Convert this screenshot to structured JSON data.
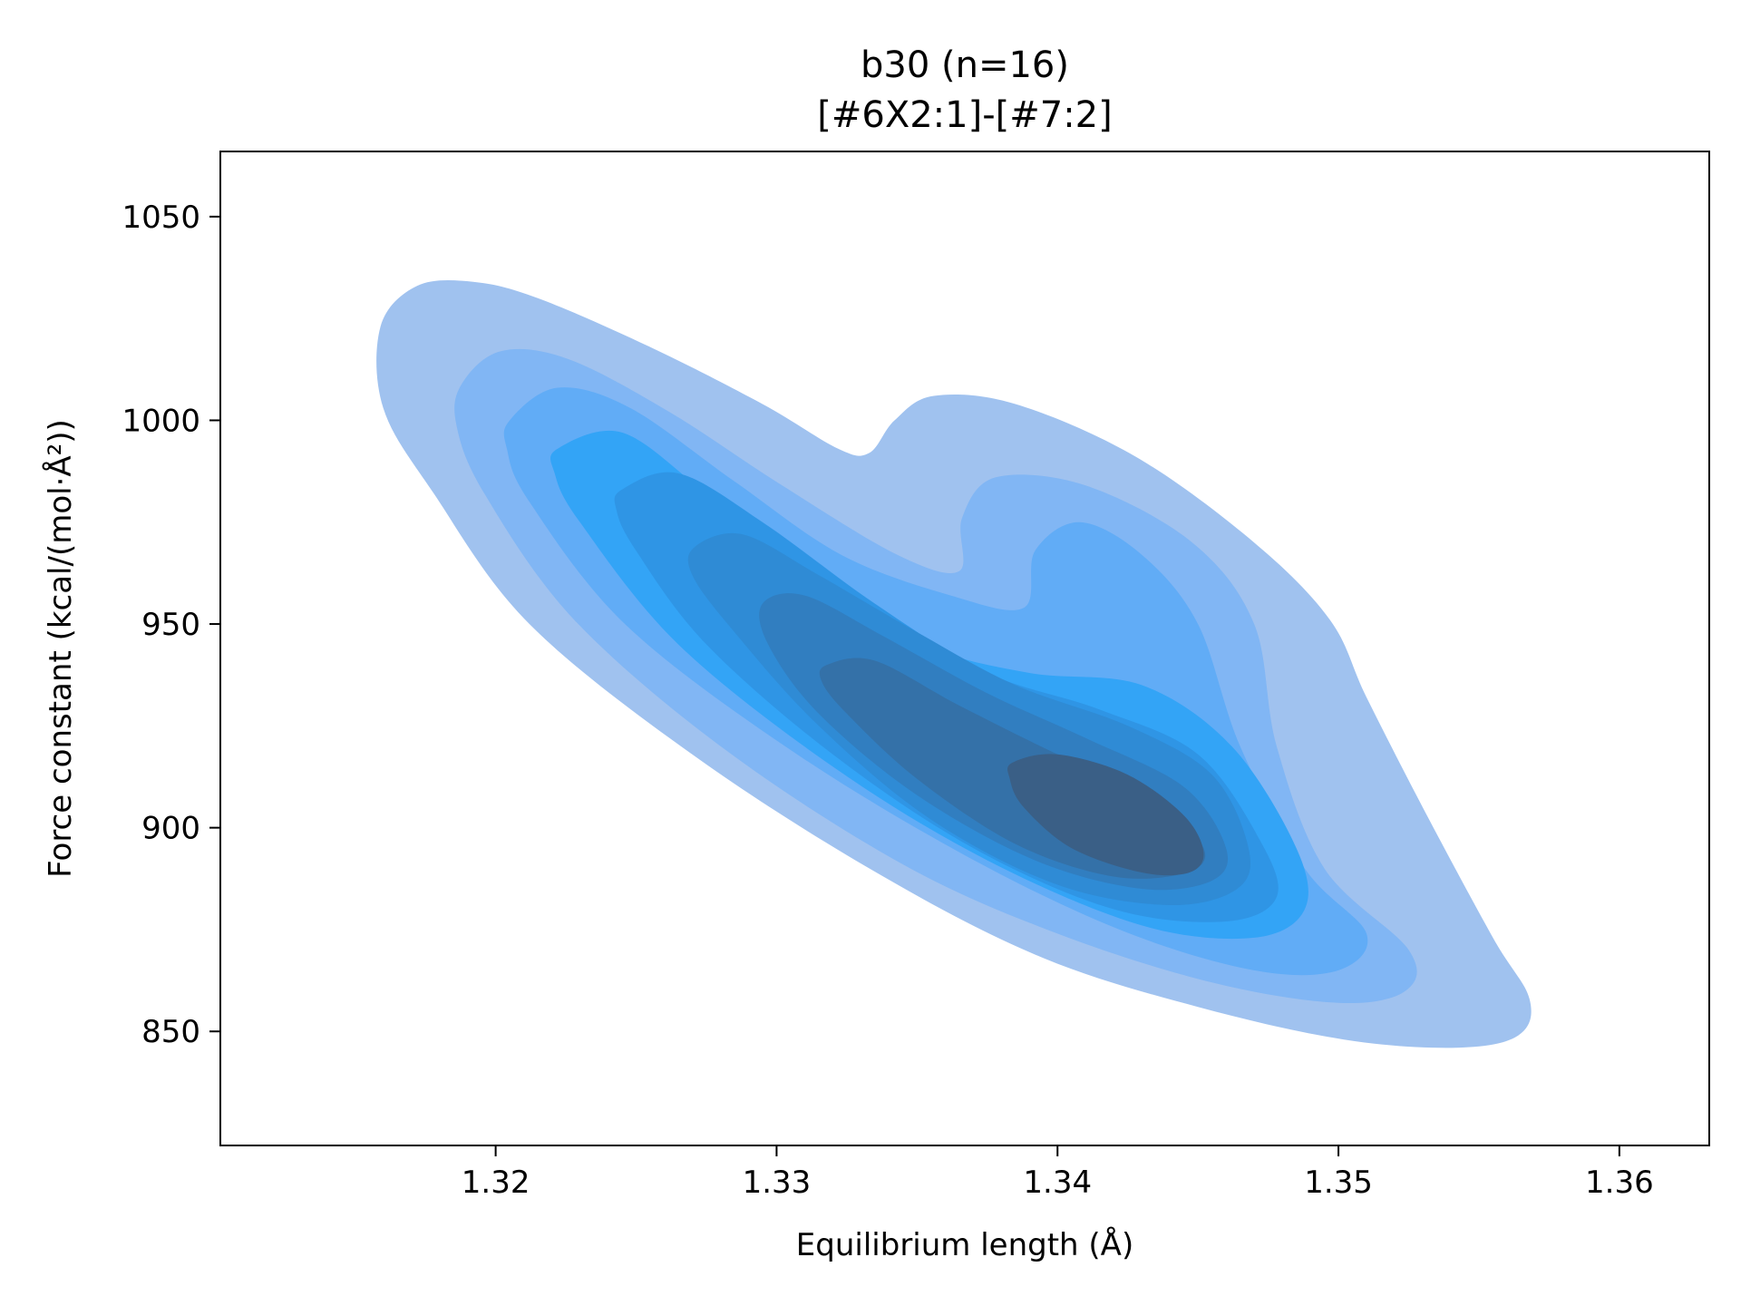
{
  "chart_data": {
    "type": "kde-contour",
    "title": "b30 (n=16)",
    "subtitle": "[#6X2:1]-[#7:2]",
    "xlabel": "Equilibrium length (Å)",
    "ylabel": "Force constant (kcal/(mol·Å²))",
    "xlim": [
      1.3102,
      1.3632
    ],
    "ylim": [
      822,
      1066
    ],
    "xticks": [
      1.32,
      1.33,
      1.34,
      1.35,
      1.36
    ],
    "xtick_labels": [
      "1.32",
      "1.33",
      "1.34",
      "1.35",
      "1.36"
    ],
    "yticks": [
      850,
      900,
      950,
      1000,
      1050
    ],
    "ytick_labels": [
      "850",
      "900",
      "950",
      "1000",
      "1050"
    ],
    "grid": false,
    "levels": [
      {
        "color": "#a0c2ef",
        "points": [
          [
            1.3159,
            1023
          ],
          [
            1.3172,
            1033
          ],
          [
            1.3192,
            1034
          ],
          [
            1.3215,
            1030
          ],
          [
            1.3255,
            1018
          ],
          [
            1.3295,
            1004
          ],
          [
            1.3322,
            993
          ],
          [
            1.3333,
            992
          ],
          [
            1.3342,
            1000
          ],
          [
            1.3356,
            1006
          ],
          [
            1.3385,
            1004
          ],
          [
            1.3428,
            991
          ],
          [
            1.347,
            970
          ],
          [
            1.3497,
            951
          ],
          [
            1.351,
            932
          ],
          [
            1.353,
            905
          ],
          [
            1.3555,
            873
          ],
          [
            1.3568,
            858
          ],
          [
            1.3564,
            849
          ],
          [
            1.3542,
            846
          ],
          [
            1.3502,
            848
          ],
          [
            1.345,
            856
          ],
          [
            1.3395,
            868
          ],
          [
            1.3338,
            888
          ],
          [
            1.3272,
            917
          ],
          [
            1.3212,
            950
          ],
          [
            1.3178,
            982
          ],
          [
            1.316,
            1003
          ]
        ]
      },
      {
        "color": "#81b6f4",
        "points": [
          [
            1.3188,
            1009
          ],
          [
            1.3202,
            1017
          ],
          [
            1.3226,
            1015
          ],
          [
            1.3262,
            1002
          ],
          [
            1.3302,
            984
          ],
          [
            1.3343,
            967
          ],
          [
            1.3365,
            963
          ],
          [
            1.3366,
            976
          ],
          [
            1.3378,
            986
          ],
          [
            1.341,
            984
          ],
          [
            1.3448,
            970
          ],
          [
            1.347,
            950
          ],
          [
            1.3478,
            920
          ],
          [
            1.3495,
            890
          ],
          [
            1.3525,
            870
          ],
          [
            1.3524,
            860
          ],
          [
            1.35,
            857
          ],
          [
            1.3455,
            862
          ],
          [
            1.34,
            874
          ],
          [
            1.3345,
            891
          ],
          [
            1.3282,
            919
          ],
          [
            1.3228,
            951
          ],
          [
            1.3196,
            982
          ],
          [
            1.3186,
            999
          ]
        ]
      },
      {
        "color": "#61acf6",
        "points": [
          [
            1.3205,
            1000
          ],
          [
            1.3222,
            1008
          ],
          [
            1.3248,
            1003
          ],
          [
            1.3285,
            985
          ],
          [
            1.3323,
            967
          ],
          [
            1.3362,
            957
          ],
          [
            1.3388,
            954
          ],
          [
            1.3392,
            968
          ],
          [
            1.3408,
            975
          ],
          [
            1.343,
            967
          ],
          [
            1.345,
            950
          ],
          [
            1.3465,
            920
          ],
          [
            1.3488,
            890
          ],
          [
            1.351,
            874
          ],
          [
            1.35,
            865
          ],
          [
            1.347,
            865
          ],
          [
            1.3422,
            875
          ],
          [
            1.3365,
            894
          ],
          [
            1.3303,
            920
          ],
          [
            1.3246,
            950
          ],
          [
            1.3212,
            980
          ],
          [
            1.3204,
            993
          ]
        ]
      },
      {
        "color": "#33a4f6",
        "points": [
          [
            1.3222,
            993
          ],
          [
            1.3245,
            997
          ],
          [
            1.3275,
            982
          ],
          [
            1.3312,
            962
          ],
          [
            1.3352,
            945
          ],
          [
            1.339,
            938
          ],
          [
            1.343,
            935
          ],
          [
            1.3462,
            920
          ],
          [
            1.3485,
            895
          ],
          [
            1.3488,
            880
          ],
          [
            1.347,
            873
          ],
          [
            1.343,
            876
          ],
          [
            1.3375,
            892
          ],
          [
            1.332,
            915
          ],
          [
            1.3265,
            945
          ],
          [
            1.323,
            975
          ],
          [
            1.3221,
            987
          ]
        ]
      },
      {
        "color": "#2f95e5",
        "points": [
          [
            1.3245,
            983
          ],
          [
            1.3265,
            987
          ],
          [
            1.3295,
            975
          ],
          [
            1.3335,
            955
          ],
          [
            1.3375,
            938
          ],
          [
            1.3415,
            929
          ],
          [
            1.345,
            918
          ],
          [
            1.3472,
            897
          ],
          [
            1.3478,
            883
          ],
          [
            1.346,
            877
          ],
          [
            1.342,
            880
          ],
          [
            1.337,
            895
          ],
          [
            1.332,
            918
          ],
          [
            1.3275,
            945
          ],
          [
            1.325,
            968
          ],
          [
            1.3243,
            978
          ]
        ]
      },
      {
        "color": "#2f8bd5",
        "points": [
          [
            1.3271,
            969
          ],
          [
            1.3288,
            972
          ],
          [
            1.3315,
            962
          ],
          [
            1.335,
            948
          ],
          [
            1.3385,
            935
          ],
          [
            1.3425,
            925
          ],
          [
            1.3455,
            913
          ],
          [
            1.3468,
            895
          ],
          [
            1.3464,
            885
          ],
          [
            1.344,
            881
          ],
          [
            1.34,
            886
          ],
          [
            1.3355,
            902
          ],
          [
            1.3315,
            925
          ],
          [
            1.3285,
            948
          ],
          [
            1.327,
            962
          ]
        ]
      },
      {
        "color": "#317ec0",
        "points": [
          [
            1.3295,
            955
          ],
          [
            1.331,
            957
          ],
          [
            1.3338,
            947
          ],
          [
            1.3375,
            933
          ],
          [
            1.341,
            922
          ],
          [
            1.3445,
            910
          ],
          [
            1.346,
            895
          ],
          [
            1.3455,
            887
          ],
          [
            1.343,
            885
          ],
          [
            1.3392,
            892
          ],
          [
            1.335,
            908
          ],
          [
            1.3315,
            928
          ],
          [
            1.3297,
            945
          ]
        ]
      },
      {
        "color": "#3471a8",
        "points": [
          [
            1.3318,
            940
          ],
          [
            1.3335,
            941
          ],
          [
            1.3365,
            930
          ],
          [
            1.34,
            918
          ],
          [
            1.3435,
            907
          ],
          [
            1.3452,
            895
          ],
          [
            1.3446,
            889
          ],
          [
            1.342,
            888
          ],
          [
            1.3385,
            896
          ],
          [
            1.335,
            912
          ],
          [
            1.3325,
            928
          ],
          [
            1.3316,
            936
          ]
        ]
      },
      {
        "color": "#3a5f86",
        "points": [
          [
            1.3384,
            916
          ],
          [
            1.34,
            918
          ],
          [
            1.3425,
            913
          ],
          [
            1.3445,
            903
          ],
          [
            1.3452,
            894
          ],
          [
            1.3447,
            889
          ],
          [
            1.343,
            889
          ],
          [
            1.3405,
            895
          ],
          [
            1.3388,
            905
          ],
          [
            1.3383,
            912
          ]
        ]
      }
    ]
  }
}
